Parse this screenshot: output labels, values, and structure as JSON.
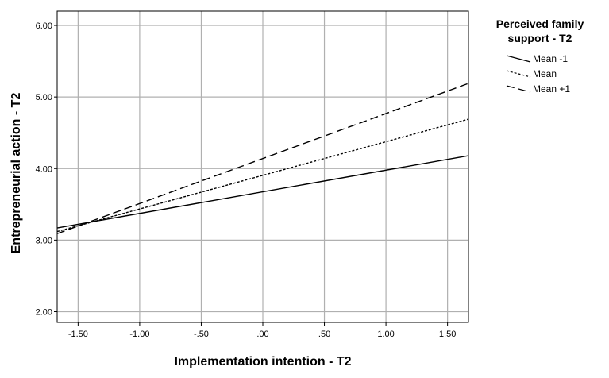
{
  "chart_data": {
    "type": "line",
    "xlabel": "Implementation intention - T2",
    "ylabel": "Entrepreneurial action - T2",
    "xlim": [
      -1.67,
      1.67
    ],
    "ylim": [
      1.85,
      6.2
    ],
    "x_ticks": [
      -1.5,
      -1.0,
      -0.5,
      0.0,
      0.5,
      1.0,
      1.5
    ],
    "x_tick_labels": [
      "-1.50",
      "-1.00",
      "-.50",
      ".00",
      ".50",
      "1.00",
      "1.50"
    ],
    "y_ticks": [
      2.0,
      3.0,
      4.0,
      5.0,
      6.0
    ],
    "y_tick_labels": [
      "2.00",
      "3.00",
      "4.00",
      "5.00",
      "6.00"
    ],
    "grid": true,
    "legend": {
      "title_lines": [
        "Perceived family",
        "support - T2"
      ],
      "placement": "right"
    },
    "series": [
      {
        "name": "Mean -1",
        "dash": "solid",
        "x": [
          -1.67,
          1.67
        ],
        "y": [
          3.17,
          4.18
        ]
      },
      {
        "name": "Mean",
        "dash": "dotted",
        "x": [
          -1.67,
          1.67
        ],
        "y": [
          3.12,
          4.69
        ]
      },
      {
        "name": "Mean +1",
        "dash": "dashed",
        "x": [
          -1.67,
          1.67
        ],
        "y": [
          3.09,
          5.19
        ]
      }
    ]
  }
}
